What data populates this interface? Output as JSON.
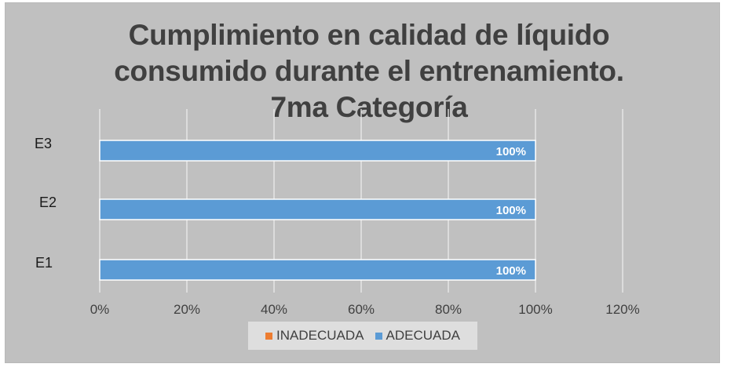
{
  "chart_data": {
    "type": "bar",
    "orientation": "horizontal",
    "title": [
      "Cumplimiento en calidad de líquido",
      "consumido durante el entrenamiento.",
      "7ma Categoría"
    ],
    "categories": [
      "E3",
      "E2",
      "E1"
    ],
    "series": [
      {
        "name": "INADECUADA",
        "color": "#ed7d31",
        "values": [
          0,
          0,
          0
        ],
        "labels": [
          "",
          "",
          ""
        ]
      },
      {
        "name": "ADECUADA",
        "color": "#5b9bd5",
        "values": [
          1.0,
          1.0,
          1.0
        ],
        "labels": [
          "100%",
          "100%",
          "100%"
        ]
      }
    ],
    "xticks": [
      "0%",
      "20%",
      "40%",
      "60%",
      "80%",
      "100%",
      "120%"
    ],
    "xlim": [
      0,
      1.2
    ],
    "grid": true,
    "legend": "bottom",
    "colors": {
      "background": "#c0c0c0",
      "bar": "#5b9bd5",
      "grid": "#ececec",
      "text": "#404040"
    }
  }
}
